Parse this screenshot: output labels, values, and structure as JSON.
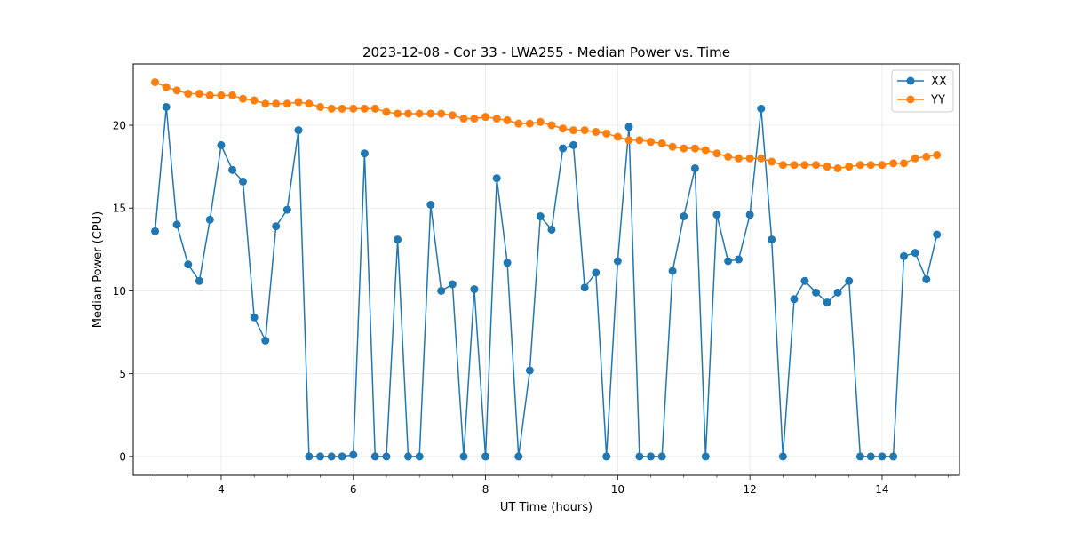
{
  "chart_data": {
    "type": "line",
    "title": "2023-12-08 - Cor 33 - LWA255 - Median Power vs. Time",
    "xlabel": "UT Time (hours)",
    "ylabel": "Median Power (CPU)",
    "xlim": [
      2.67,
      15.17
    ],
    "ylim": [
      -1.13,
      23.7
    ],
    "x_ticks": [
      4,
      6,
      8,
      10,
      12,
      14
    ],
    "x_minor_step": 0.5,
    "y_ticks": [
      0,
      5,
      10,
      15,
      20
    ],
    "grid": true,
    "legend_position": "top-right",
    "x": [
      3.0,
      3.17,
      3.33,
      3.5,
      3.67,
      3.83,
      4.0,
      4.17,
      4.33,
      4.5,
      4.67,
      4.83,
      5.0,
      5.17,
      5.33,
      5.5,
      5.67,
      5.83,
      6.0,
      6.17,
      6.33,
      6.5,
      6.67,
      6.83,
      7.0,
      7.17,
      7.33,
      7.5,
      7.67,
      7.83,
      8.0,
      8.17,
      8.33,
      8.5,
      8.67,
      8.83,
      9.0,
      9.17,
      9.33,
      9.5,
      9.67,
      9.83,
      10.0,
      10.17,
      10.33,
      10.5,
      10.67,
      10.83,
      11.0,
      11.17,
      11.33,
      11.5,
      11.67,
      11.83,
      12.0,
      12.17,
      12.33,
      12.5,
      12.67,
      12.83,
      13.0,
      13.17,
      13.33,
      13.5,
      13.67,
      13.83,
      14.0,
      14.17,
      14.33,
      14.5,
      14.67,
      14.83
    ],
    "series": [
      {
        "name": "XX",
        "color": "#1f77b4",
        "values": [
          13.6,
          21.1,
          14.0,
          11.6,
          10.6,
          14.3,
          18.8,
          17.3,
          16.6,
          8.4,
          7.0,
          13.9,
          14.9,
          19.7,
          0.0,
          0.0,
          0.0,
          0.0,
          0.1,
          18.3,
          0.0,
          0.0,
          13.1,
          0.0,
          0.0,
          15.2,
          10.0,
          10.4,
          0.0,
          10.1,
          0.0,
          16.8,
          11.7,
          0.0,
          5.2,
          14.5,
          13.7,
          18.6,
          18.8,
          10.2,
          11.1,
          0.0,
          11.8,
          19.9,
          0.0,
          0.0,
          0.0,
          11.2,
          14.5,
          17.4,
          0.0,
          14.6,
          11.8,
          11.9,
          14.6,
          21.0,
          13.1,
          0.0,
          9.5,
          10.6,
          9.9,
          9.3,
          9.9,
          10.6,
          0.0,
          0.0,
          0.0,
          0.0,
          12.1,
          12.3,
          10.7,
          13.4
        ]
      },
      {
        "name": "YY",
        "color": "#ff7f0e",
        "values": [
          22.6,
          22.3,
          22.1,
          21.9,
          21.9,
          21.8,
          21.8,
          21.8,
          21.6,
          21.5,
          21.3,
          21.3,
          21.3,
          21.4,
          21.3,
          21.1,
          21.0,
          21.0,
          21.0,
          21.0,
          21.0,
          20.8,
          20.7,
          20.7,
          20.7,
          20.7,
          20.7,
          20.6,
          20.4,
          20.4,
          20.5,
          20.4,
          20.3,
          20.1,
          20.1,
          20.2,
          20.0,
          19.8,
          19.7,
          19.7,
          19.6,
          19.5,
          19.3,
          19.1,
          19.1,
          19.0,
          18.9,
          18.7,
          18.6,
          18.6,
          18.5,
          18.3,
          18.1,
          18.0,
          18.0,
          18.0,
          17.8,
          17.6,
          17.6,
          17.6,
          17.6,
          17.5,
          17.4,
          17.5,
          17.6,
          17.6,
          17.6,
          17.7,
          17.7,
          18.0,
          18.1,
          18.2
        ]
      }
    ]
  }
}
